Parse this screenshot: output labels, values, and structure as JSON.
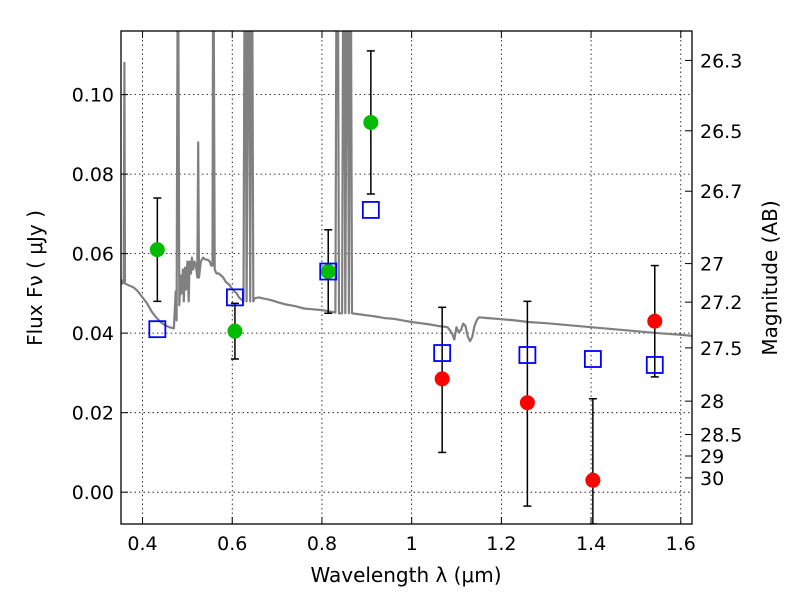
{
  "chart_data": {
    "type": "scatter",
    "xlabel": "Wavelength  λ (μm)",
    "ylabel": "Flux  Fν  ( μJy )",
    "y2label": "Magnitude (AB)",
    "xlim": [
      0.352,
      1.625
    ],
    "ylim": [
      -0.008,
      0.116
    ],
    "grid": true,
    "x_ticks": [
      0.4,
      0.6,
      0.8,
      1.0,
      1.2,
      1.4,
      1.6
    ],
    "x_tick_labels": [
      "0.4",
      "0.6",
      "0.8",
      "1",
      "1.2",
      "1.4",
      "1.6"
    ],
    "y_ticks": [
      0.0,
      0.02,
      0.04,
      0.06,
      0.08,
      0.1
    ],
    "y_tick_labels": [
      "0.00",
      "0.02",
      "0.04",
      "0.06",
      "0.08",
      "0.10"
    ],
    "y2_ticks": [
      {
        "label": "26.3",
        "flux": 0.1086
      },
      {
        "label": "26.5",
        "flux": 0.0909
      },
      {
        "label": "26.7",
        "flux": 0.0757
      },
      {
        "label": "27",
        "flux": 0.0575
      },
      {
        "label": "27.2",
        "flux": 0.0478
      },
      {
        "label": "27.5",
        "flux": 0.0363
      },
      {
        "label": "28",
        "flux": 0.0229
      },
      {
        "label": "28.5",
        "flux": 0.0145
      },
      {
        "label": "29",
        "flux": 0.0091
      },
      {
        "label": "30",
        "flux": 0.0036
      }
    ],
    "series": [
      {
        "kind": "sed",
        "color": "#808080",
        "points": [
          [
            0.352,
            0.0535
          ],
          [
            0.355,
            0.0525
          ],
          [
            0.358,
            0.0528
          ],
          [
            0.3595,
            0.108
          ],
          [
            0.361,
            0.0525
          ],
          [
            0.37,
            0.052
          ],
          [
            0.38,
            0.0515
          ],
          [
            0.39,
            0.0505
          ],
          [
            0.4,
            0.049
          ],
          [
            0.41,
            0.0475
          ],
          [
            0.42,
            0.0455
          ],
          [
            0.43,
            0.044
          ],
          [
            0.44,
            0.0428
          ],
          [
            0.45,
            0.042
          ],
          [
            0.46,
            0.0415
          ],
          [
            0.47,
            0.0412
          ],
          [
            0.474,
            0.0505
          ],
          [
            0.476,
            0.0432
          ],
          [
            0.478,
            0.116
          ],
          [
            0.48,
            0.116
          ],
          [
            0.482,
            0.047
          ],
          [
            0.485,
            0.0545
          ],
          [
            0.487,
            0.05
          ],
          [
            0.49,
            0.056
          ],
          [
            0.492,
            0.048
          ],
          [
            0.495,
            0.0565
          ],
          [
            0.497,
            0.051
          ],
          [
            0.5,
            0.058
          ],
          [
            0.503,
            0.048
          ],
          [
            0.505,
            0.058
          ],
          [
            0.508,
            0.055
          ],
          [
            0.51,
            0.059
          ],
          [
            0.513,
            0.056
          ],
          [
            0.516,
            0.058
          ],
          [
            0.519,
            0.057
          ],
          [
            0.522,
            0.054
          ],
          [
            0.524,
            0.088
          ],
          [
            0.526,
            0.054
          ],
          [
            0.53,
            0.058
          ],
          [
            0.535,
            0.059
          ],
          [
            0.54,
            0.0585
          ],
          [
            0.545,
            0.0585
          ],
          [
            0.55,
            0.058
          ],
          [
            0.553,
            0.057
          ],
          [
            0.556,
            0.057
          ],
          [
            0.557,
            0.116
          ],
          [
            0.559,
            0.116
          ],
          [
            0.561,
            0.056
          ],
          [
            0.565,
            0.055
          ],
          [
            0.57,
            0.055
          ],
          [
            0.575,
            0.0545
          ],
          [
            0.58,
            0.054
          ],
          [
            0.585,
            0.053
          ],
          [
            0.59,
            0.0525
          ],
          [
            0.595,
            0.052
          ],
          [
            0.6,
            0.051
          ],
          [
            0.605,
            0.0505
          ],
          [
            0.61,
            0.05
          ],
          [
            0.615,
            0.049
          ],
          [
            0.625,
            0.048
          ],
          [
            0.627,
            0.116
          ],
          [
            0.63,
            0.116
          ],
          [
            0.632,
            0.048
          ],
          [
            0.635,
            0.116
          ],
          [
            0.638,
            0.116
          ],
          [
            0.64,
            0.048
          ],
          [
            0.642,
            0.116
          ],
          [
            0.645,
            0.116
          ],
          [
            0.647,
            0.048
          ],
          [
            0.65,
            0.0488
          ],
          [
            0.66,
            0.049
          ],
          [
            0.67,
            0.0487
          ],
          [
            0.68,
            0.0485
          ],
          [
            0.69,
            0.0482
          ],
          [
            0.7,
            0.0478
          ],
          [
            0.72,
            0.0472
          ],
          [
            0.74,
            0.0468
          ],
          [
            0.76,
            0.0462
          ],
          [
            0.78,
            0.046
          ],
          [
            0.8,
            0.0458
          ],
          [
            0.82,
            0.0454
          ],
          [
            0.83,
            0.0452
          ],
          [
            0.832,
            0.116
          ],
          [
            0.836,
            0.116
          ],
          [
            0.838,
            0.045
          ],
          [
            0.845,
            0.045
          ],
          [
            0.847,
            0.116
          ],
          [
            0.85,
            0.116
          ],
          [
            0.852,
            0.045
          ],
          [
            0.855,
            0.116
          ],
          [
            0.858,
            0.116
          ],
          [
            0.86,
            0.045
          ],
          [
            0.862,
            0.116
          ],
          [
            0.865,
            0.116
          ],
          [
            0.867,
            0.045
          ],
          [
            0.88,
            0.0448
          ],
          [
            0.9,
            0.0445
          ],
          [
            0.92,
            0.0442
          ],
          [
            0.94,
            0.0438
          ],
          [
            0.96,
            0.0436
          ],
          [
            0.98,
            0.0432
          ],
          [
            1.0,
            0.0428
          ],
          [
            1.02,
            0.0425
          ],
          [
            1.04,
            0.0422
          ],
          [
            1.06,
            0.0418
          ],
          [
            1.08,
            0.0415
          ],
          [
            1.09,
            0.04
          ],
          [
            1.095,
            0.0384
          ],
          [
            1.1,
            0.0415
          ],
          [
            1.105,
            0.0402
          ],
          [
            1.11,
            0.0408
          ],
          [
            1.115,
            0.0424
          ],
          [
            1.12,
            0.0418
          ],
          [
            1.125,
            0.0392
          ],
          [
            1.13,
            0.038
          ],
          [
            1.135,
            0.039
          ],
          [
            1.14,
            0.0418
          ],
          [
            1.145,
            0.0432
          ],
          [
            1.15,
            0.044
          ],
          [
            1.17,
            0.0438
          ],
          [
            1.2,
            0.0435
          ],
          [
            1.23,
            0.0432
          ],
          [
            1.26,
            0.0428
          ],
          [
            1.3,
            0.0425
          ],
          [
            1.35,
            0.042
          ],
          [
            1.4,
            0.0415
          ],
          [
            1.45,
            0.041
          ],
          [
            1.5,
            0.0405
          ],
          [
            1.55,
            0.04
          ],
          [
            1.6,
            0.0396
          ],
          [
            1.625,
            0.0393
          ]
        ]
      },
      {
        "kind": "observed",
        "color": "#00bb00",
        "points": [
          {
            "x": 0.433,
            "y": 0.061,
            "lo": 0.048,
            "hi": 0.074
          },
          {
            "x": 0.606,
            "y": 0.0405,
            "lo": 0.0335,
            "hi": 0.0475
          },
          {
            "x": 0.814,
            "y": 0.0555,
            "lo": 0.045,
            "hi": 0.066
          },
          {
            "x": 0.909,
            "y": 0.093,
            "lo": 0.075,
            "hi": 0.111
          }
        ]
      },
      {
        "kind": "observed",
        "color": "#ff0000",
        "points": [
          {
            "x": 1.068,
            "y": 0.0285,
            "lo": 0.01,
            "hi": 0.0465
          },
          {
            "x": 1.258,
            "y": 0.0225,
            "lo": -0.0035,
            "hi": 0.048
          },
          {
            "x": 1.404,
            "y": 0.003,
            "lo": -0.008,
            "hi": 0.0235
          },
          {
            "x": 1.542,
            "y": 0.043,
            "lo": 0.029,
            "hi": 0.057
          }
        ]
      },
      {
        "kind": "model",
        "color": "#0000ff",
        "points": [
          {
            "x": 0.433,
            "y": 0.041
          },
          {
            "x": 0.606,
            "y": 0.049
          },
          {
            "x": 0.814,
            "y": 0.0555
          },
          {
            "x": 0.909,
            "y": 0.071
          },
          {
            "x": 1.068,
            "y": 0.035
          },
          {
            "x": 1.258,
            "y": 0.0345
          },
          {
            "x": 1.404,
            "y": 0.0335
          },
          {
            "x": 1.542,
            "y": 0.032
          }
        ]
      }
    ]
  }
}
